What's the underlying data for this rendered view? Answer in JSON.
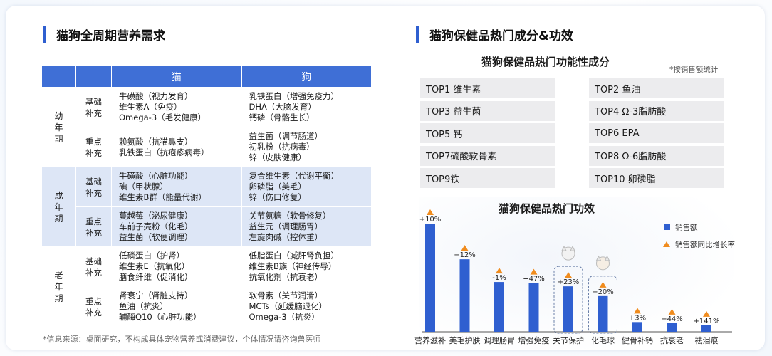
{
  "left": {
    "title": "猫狗全周期营养需求",
    "header": {
      "cat": "猫",
      "dog": "狗"
    },
    "groups": [
      {
        "stage": "幼年期",
        "rows": [
          {
            "sub": "基础补充",
            "cat": [
              "牛磺酸（视力发育）",
              "维生素A（免疫）",
              "Omega-3（毛发健康）"
            ],
            "dog": [
              "乳铁蛋白（增强免疫力）",
              "DHA（大脑发育）",
              "钙磷（骨骼生长）"
            ]
          },
          {
            "sub": "重点补充",
            "cat": [
              "赖氨酸（抗猫鼻支）",
              "乳铁蛋白（抗疱疹病毒）"
            ],
            "dog": [
              "益生菌（调节肠道）",
              "初乳粉（抗病毒）",
              "锌（皮肤健康）"
            ]
          }
        ]
      },
      {
        "stage": "成年期",
        "rows": [
          {
            "sub": "基础补充",
            "cat": [
              "牛磺酸（心脏功能）",
              "碘（甲状腺）",
              "维生素B群（能量代谢）"
            ],
            "dog": [
              "复合维生素（代谢平衡）",
              "卵磷脂（美毛）",
              "锌（伤口修复）"
            ]
          },
          {
            "sub": "重点补充",
            "cat": [
              "蔓越莓（泌尿健康）",
              "车前子壳粉（化毛）",
              "益生菌（软便调理）"
            ],
            "dog": [
              "关节氨糖（软骨修复）",
              "益生元（调理肠胃）",
              "左旋肉碱（控体重）"
            ]
          }
        ]
      },
      {
        "stage": "老年期",
        "rows": [
          {
            "sub": "基础补充",
            "cat": [
              "低磷蛋白（护肾）",
              "维生素E（抗氧化）",
              "膳食纤维（促消化）"
            ],
            "dog": [
              "低脂蛋白（减肝肾负担）",
              "维生素B族（神经传导）",
              "抗氧化剂（抗衰老）"
            ]
          },
          {
            "sub": "重点补充",
            "cat": [
              "肾衰宁（肾脏支持）",
              "鱼油（抗炎）",
              "辅酶Q10（心脏功能）"
            ],
            "dog": [
              "软骨素（关节润滑）",
              "MCTs（延缓脑退化）",
              "Omega-3（抗炎）"
            ]
          }
        ]
      }
    ],
    "footnote": "*信息来源：桌面研究，不构成具体宠物营养或消费建议，个体情况请咨询兽医师"
  },
  "right": {
    "title": "猫狗保健品热门成分&功效",
    "subtitle": "猫狗保健品热门功能性成分",
    "note": "*按销售额统计",
    "tops": [
      "TOP1 维生素",
      "TOP2 鱼油",
      "TOP3 益生菌",
      "TOP4 Ω-3脂肪酸",
      "TOP5 钙",
      "TOP6 EPA",
      "TOP7硫酸软骨素",
      "TOP8 Ω-6脂肪酸",
      "TOP9铁",
      "TOP10 卵磷脂"
    ]
  },
  "colors": {
    "accent": "#2f5fd0",
    "bar": "#2f5fd0",
    "marker": "#f08c1e",
    "table_header": "#3f6fd6",
    "band": "#dde6f6"
  },
  "chart_data": {
    "type": "bar",
    "title": "猫狗保健品热门功效",
    "categories": [
      "营养滋补",
      "美毛护肤",
      "调理肠胃",
      "增强免疫",
      "关节保护",
      "化毛球",
      "健骨补钙",
      "抗衰老",
      "祛泪痕"
    ],
    "series": [
      {
        "name": "销售额",
        "values": [
          100,
          67,
          46,
          45,
          42,
          33,
          9,
          8,
          6
        ]
      }
    ],
    "growth": {
      "name": "销售额同比增长率",
      "labels": [
        "+10%",
        "+12%",
        "-1%",
        "+47%",
        "+23%",
        "+20%",
        "+3%",
        "+44%",
        "+141%"
      ]
    },
    "highlighted": [
      "关节保护",
      "化毛球"
    ],
    "legend_position": "top-right",
    "grid": false
  }
}
